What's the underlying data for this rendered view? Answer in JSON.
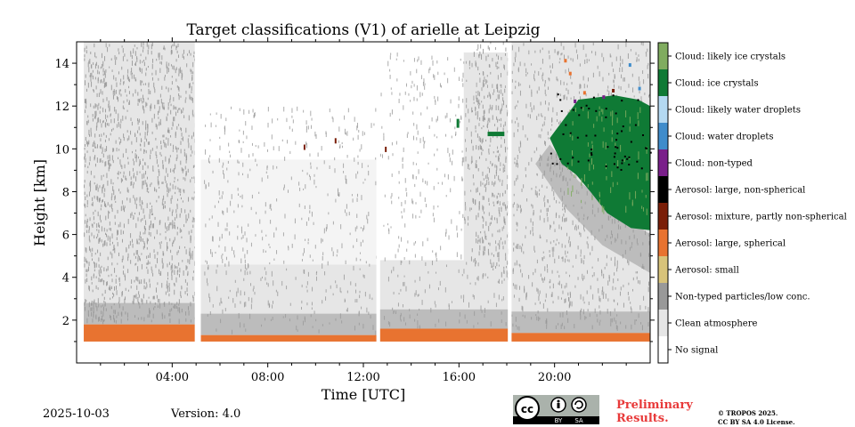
{
  "chart_data": {
    "type": "heatmap",
    "title": "Target classifications (V1) of arielle at Leipzig",
    "xlabel": "Time [UTC]",
    "ylabel": "Height [km]",
    "xlim": [
      0,
      24
    ],
    "ylim": [
      0,
      15
    ],
    "x_ticks": [
      {
        "value": 4,
        "label": "04:00"
      },
      {
        "value": 8,
        "label": "08:00"
      },
      {
        "value": 12,
        "label": "12:00"
      },
      {
        "value": 16,
        "label": "16:00"
      },
      {
        "value": 20,
        "label": "20:00"
      }
    ],
    "y_ticks": [
      {
        "value": 2,
        "label": "2"
      },
      {
        "value": 4,
        "label": "4"
      },
      {
        "value": 6,
        "label": "6"
      },
      {
        "value": 8,
        "label": "8"
      },
      {
        "value": 10,
        "label": "10"
      },
      {
        "value": 12,
        "label": "12"
      },
      {
        "value": 14,
        "label": "14"
      }
    ],
    "classes": [
      {
        "label": "Cloud: likely ice crystals",
        "color": "#80ac5f"
      },
      {
        "label": "Cloud: ice crystals",
        "color": "#0f7a35"
      },
      {
        "label": "Cloud: likely water droplets",
        "color": "#b4d9f2"
      },
      {
        "label": "Cloud: water droplets",
        "color": "#3f8ccb"
      },
      {
        "label": "Cloud: non-typed",
        "color": "#7a1f8a"
      },
      {
        "label": "Aerosol: large, non-spherical",
        "color": "#000000"
      },
      {
        "label": "Aerosol: mixture, partly non-spherical",
        "color": "#7a1e08"
      },
      {
        "label": "Aerosol: large, spherical",
        "color": "#e87330"
      },
      {
        "label": "Aerosol: small",
        "color": "#d8c37a"
      },
      {
        "label": "Non-typed particles/low conc.",
        "color": "#999999"
      },
      {
        "label": "Clean atmosphere",
        "color": "#e6e6e6"
      },
      {
        "label": "No signal",
        "color": "#ffffff"
      }
    ],
    "data_gaps_hours": [
      5.0,
      12.6,
      18.1
    ],
    "regions": [
      {
        "class": "Aerosol: large, spherical",
        "from": 0.3,
        "to": 5.0,
        "top_km": 1.8
      },
      {
        "class": "Aerosol: large, spherical",
        "from": 5.2,
        "to": 12.6,
        "top_km": 1.3
      },
      {
        "class": "Aerosol: large, spherical",
        "from": 12.7,
        "to": 18.1,
        "top_km": 1.6
      },
      {
        "class": "Aerosol: large, spherical",
        "from": 18.2,
        "to": 24.0,
        "top_km": 1.4
      },
      {
        "class": "Cloud: ice crystals",
        "from": 19.8,
        "to": 24.0,
        "base_km": 6.2,
        "top_km": 12.3
      }
    ]
  },
  "footer": {
    "date": "2025-10-03",
    "version": "Version: 4.0",
    "cc_label": "cc",
    "cc_by": "BY",
    "cc_sa": "SA",
    "preliminary_line1": "Preliminary",
    "preliminary_line2": "Results.",
    "copyright_line1": "© TROPOS 2025.",
    "copyright_line2": "CC BY SA 4.0 License."
  }
}
